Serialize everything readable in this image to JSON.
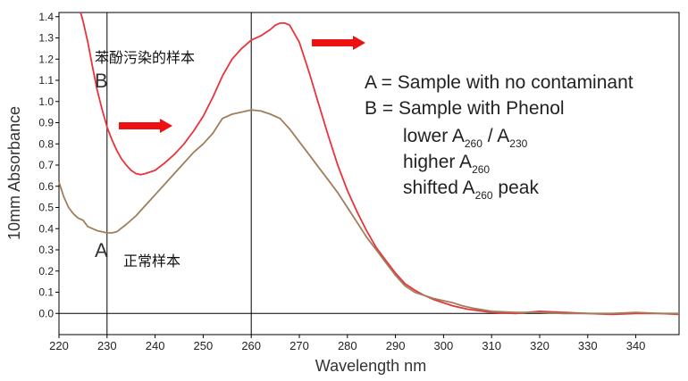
{
  "chart_data": {
    "type": "line",
    "xlabel": "Wavelength nm",
    "ylabel": "10mm Absorbance",
    "xlim": [
      220,
      349
    ],
    "ylim": [
      -0.1,
      1.42
    ],
    "x_ticks": [
      220,
      230,
      240,
      250,
      260,
      270,
      280,
      290,
      300,
      310,
      320,
      330,
      340
    ],
    "y_ticks": [
      0.0,
      0.1,
      0.2,
      0.3,
      0.4,
      0.5,
      0.6,
      0.7,
      0.8,
      0.9,
      1.0,
      1.1,
      1.2,
      1.3,
      1.4
    ],
    "y_tick_labels": [
      "0.0",
      "0.1",
      "0.2",
      "0.3",
      "0.4",
      "0.5",
      "0.6",
      "0.7",
      "0.8",
      "0.9",
      "1.0",
      "1.1",
      "1.2",
      "1.3",
      "1.4"
    ],
    "reference_lines": [
      230,
      260
    ],
    "grid": false,
    "series": [
      {
        "label": "B",
        "color": "#e8343a",
        "x": [
          224.5,
          225,
          226,
          227,
          228,
          229,
          230,
          231,
          232,
          233,
          234,
          235,
          236,
          237,
          238,
          240,
          242,
          244,
          246,
          248,
          250,
          252,
          254,
          256,
          258,
          260,
          262,
          264,
          265,
          266,
          267,
          268,
          270,
          272,
          274,
          276,
          278,
          280,
          282,
          284,
          286,
          288,
          290,
          292,
          294,
          296,
          298,
          300,
          302,
          305,
          310,
          315,
          320,
          325,
          330,
          335,
          340,
          345,
          349
        ],
        "y": [
          1.42,
          1.38,
          1.28,
          1.16,
          1.05,
          0.96,
          0.88,
          0.82,
          0.77,
          0.73,
          0.7,
          0.675,
          0.66,
          0.655,
          0.66,
          0.675,
          0.71,
          0.75,
          0.8,
          0.86,
          0.93,
          1.02,
          1.12,
          1.2,
          1.25,
          1.29,
          1.31,
          1.34,
          1.36,
          1.37,
          1.37,
          1.36,
          1.28,
          1.14,
          0.99,
          0.84,
          0.7,
          0.58,
          0.48,
          0.39,
          0.31,
          0.25,
          0.19,
          0.14,
          0.11,
          0.085,
          0.065,
          0.05,
          0.035,
          0.02,
          0.005,
          0.0,
          0.01,
          0.005,
          0.0,
          -0.005,
          0.0,
          0.0,
          -0.005
        ]
      },
      {
        "label": "A",
        "color": "#a07e5c",
        "x": [
          220,
          221,
          222,
          223,
          224,
          225,
          226,
          227,
          228,
          229,
          230,
          231,
          232,
          234,
          236,
          238,
          240,
          242,
          244,
          246,
          248,
          250,
          252,
          254,
          256,
          258,
          260,
          262,
          264,
          266,
          268,
          270,
          272,
          274,
          276,
          278,
          280,
          282,
          284,
          286,
          288,
          290,
          292,
          294,
          296,
          298,
          300,
          302,
          304,
          306,
          310,
          315,
          320,
          325,
          330,
          335,
          340,
          345,
          349
        ],
        "y": [
          0.62,
          0.55,
          0.5,
          0.47,
          0.45,
          0.44,
          0.41,
          0.4,
          0.39,
          0.385,
          0.38,
          0.38,
          0.385,
          0.42,
          0.46,
          0.51,
          0.56,
          0.61,
          0.66,
          0.71,
          0.76,
          0.8,
          0.85,
          0.92,
          0.94,
          0.95,
          0.96,
          0.955,
          0.94,
          0.92,
          0.87,
          0.81,
          0.75,
          0.69,
          0.63,
          0.57,
          0.5,
          0.43,
          0.36,
          0.3,
          0.24,
          0.18,
          0.13,
          0.1,
          0.085,
          0.07,
          0.06,
          0.05,
          0.035,
          0.025,
          0.01,
          0.005,
          0.005,
          0.0,
          0.0,
          0.0,
          0.005,
          0.0,
          0.0
        ]
      }
    ],
    "annotations": {
      "top_left_cn": "苯酚污染的样本",
      "label_b": "B",
      "label_a": "A",
      "label_a_cn": "正常样本",
      "legend_line1": "A = Sample with no contaminant",
      "legend_line2": "B = Sample with Phenol",
      "legend_line3_main": "lower A",
      "legend_line3_sub1": "260",
      "legend_line3_mid": " / A",
      "legend_line3_sub2": "230",
      "legend_line4_main": "higher A",
      "legend_line4_sub": "260",
      "legend_line5_main": "shifted A",
      "legend_line5_sub": "260",
      "legend_line5_end": " peak"
    },
    "arrows": [
      {
        "name": "arrow-left",
        "color": "#ee1111"
      },
      {
        "name": "arrow-right",
        "color": "#ee1111"
      }
    ]
  }
}
